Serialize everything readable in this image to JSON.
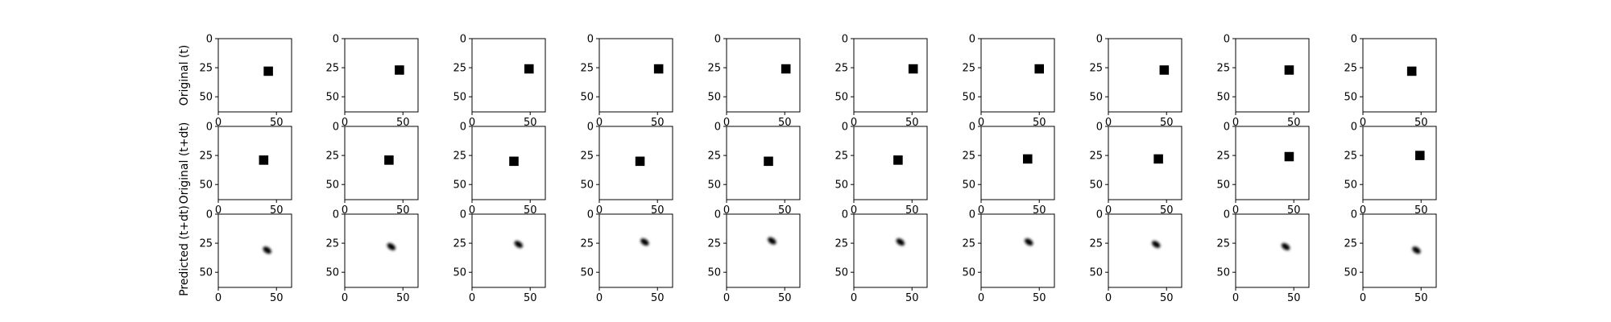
{
  "chart_data": {
    "type": "image-grid",
    "rows": [
      {
        "label": "Original (t)",
        "kind": "square"
      },
      {
        "label": "Original (t+dt)",
        "kind": "square"
      },
      {
        "label": "Predicted (t+dt)",
        "kind": "blob"
      }
    ],
    "columns": 10,
    "image_size": 64,
    "axis": {
      "xlim": [
        0,
        63
      ],
      "ylim": [
        63,
        0
      ],
      "x_ticks": [
        0,
        50
      ],
      "y_ticks": [
        0,
        25,
        50
      ],
      "xtick_labels": [
        "0",
        "50"
      ],
      "ytick_labels": [
        "0",
        "25",
        "50"
      ],
      "x_ticks_shown_on_row": 2
    },
    "square_size": 8,
    "blob_size": 8,
    "frames": [
      {
        "row": 0,
        "centers": [
          [
            43,
            28
          ],
          [
            47,
            27
          ],
          [
            49,
            26
          ],
          [
            51,
            26
          ],
          [
            51,
            26
          ],
          [
            51,
            26
          ],
          [
            50,
            26
          ],
          [
            48,
            27
          ],
          [
            46,
            27
          ],
          [
            42,
            28
          ]
        ]
      },
      {
        "row": 1,
        "centers": [
          [
            39,
            29
          ],
          [
            38,
            29
          ],
          [
            36,
            30
          ],
          [
            35,
            30
          ],
          [
            36,
            30
          ],
          [
            38,
            29
          ],
          [
            40,
            28
          ],
          [
            43,
            28
          ],
          [
            46,
            26
          ],
          [
            49,
            25
          ]
        ]
      },
      {
        "row": 2,
        "centers": [
          [
            42,
            31
          ],
          [
            40,
            28
          ],
          [
            40,
            26
          ],
          [
            39,
            24
          ],
          [
            39,
            23
          ],
          [
            40,
            24
          ],
          [
            41,
            24
          ],
          [
            41,
            26
          ],
          [
            43,
            28
          ],
          [
            46,
            31
          ]
        ]
      }
    ],
    "colors": {
      "pixel": "#000000",
      "background": "#ffffff",
      "frame": "#000000"
    }
  }
}
